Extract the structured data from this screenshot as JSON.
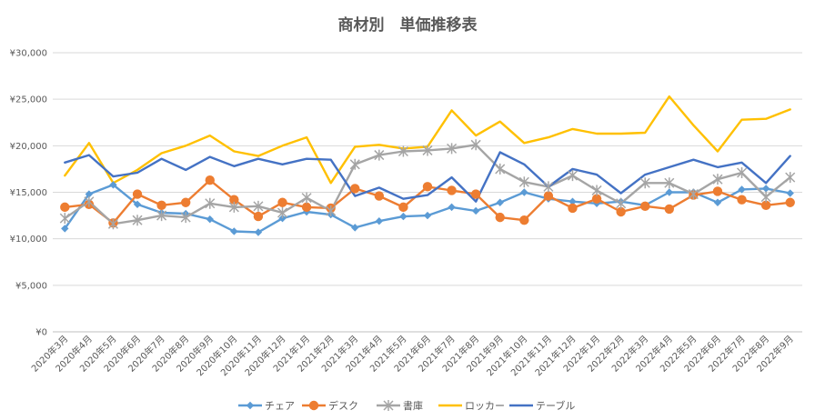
{
  "chart_data": {
    "type": "line",
    "title": "商材別　単価推移表",
    "xlabel": "",
    "ylabel": "",
    "ylim": [
      0,
      30000
    ],
    "yticks": [
      0,
      5000,
      10000,
      15000,
      20000,
      25000,
      30000
    ],
    "ytick_labels": [
      "¥0",
      "¥5,000",
      "¥10,000",
      "¥15,000",
      "¥20,000",
      "¥25,000",
      "¥30,000"
    ],
    "grid": "horizontal",
    "legend_position": "bottom",
    "categories": [
      "2020年3月",
      "2020年4月",
      "2020年5月",
      "2020年6月",
      "2020年7月",
      "2020年8月",
      "2020年9月",
      "2020年10月",
      "2020年11月",
      "2020年12月",
      "2021年1月",
      "2021年2月",
      "2021年3月",
      "2021年4月",
      "2021年5月",
      "2021年6月",
      "2021年7月",
      "2021年8月",
      "2021年9月",
      "2021年10月",
      "2021年11月",
      "2021年12月",
      "2022年1月",
      "2022年2月",
      "2022年3月",
      "2022年4月",
      "2022年5月",
      "2022年6月",
      "2022年7月",
      "2022年8月",
      "2022年9月"
    ],
    "series": [
      {
        "name": "チェア",
        "color": "#5b9bd5",
        "marker": "diamond",
        "values": [
          11100,
          14800,
          15800,
          13700,
          12800,
          12700,
          12100,
          10800,
          10700,
          12200,
          12900,
          12600,
          11200,
          11900,
          12400,
          12500,
          13400,
          13000,
          13900,
          15000,
          14300,
          14000,
          13800,
          14000,
          13600,
          15000,
          15000,
          13900,
          15300,
          15400,
          14900
        ]
      },
      {
        "name": "デスク",
        "color": "#ed7d31",
        "marker": "circle",
        "values": [
          13400,
          13700,
          11700,
          14800,
          13600,
          13900,
          16300,
          14200,
          12400,
          13900,
          13400,
          13300,
          15400,
          14600,
          13400,
          15600,
          15200,
          14800,
          12300,
          12000,
          14600,
          13300,
          14300,
          12900,
          13500,
          13200,
          14700,
          15100,
          14200,
          13600,
          13900
        ]
      },
      {
        "name": "書庫",
        "color": "#a5a5a5",
        "marker": "star",
        "values": [
          12200,
          14000,
          11600,
          12000,
          12500,
          12300,
          13800,
          13400,
          13500,
          12800,
          14400,
          13000,
          18000,
          19000,
          19400,
          19500,
          19700,
          20100,
          17500,
          16100,
          15600,
          16800,
          15200,
          13800,
          16000,
          16000,
          14800,
          16400,
          17100,
          14500,
          16600
        ]
      },
      {
        "name": "ロッカー",
        "color": "#ffc000",
        "marker": "none",
        "values": [
          16800,
          20300,
          16000,
          17400,
          19200,
          20000,
          21100,
          19400,
          18900,
          20000,
          20900,
          16000,
          19900,
          20100,
          19700,
          19900,
          23800,
          21100,
          22600,
          20300,
          20900,
          21800,
          21300,
          21300,
          21400,
          25300,
          22200,
          19400,
          22800,
          22900,
          23900
        ]
      },
      {
        "name": "テーブル",
        "color": "#4472c4",
        "marker": "none",
        "values": [
          18200,
          19000,
          16700,
          17100,
          18600,
          17400,
          18800,
          17800,
          18600,
          18000,
          18600,
          18500,
          14600,
          15500,
          14300,
          14700,
          16600,
          14000,
          19300,
          18000,
          15600,
          17500,
          16900,
          14900,
          16900,
          17700,
          18500,
          17700,
          18200,
          16000,
          18900
        ]
      }
    ]
  }
}
